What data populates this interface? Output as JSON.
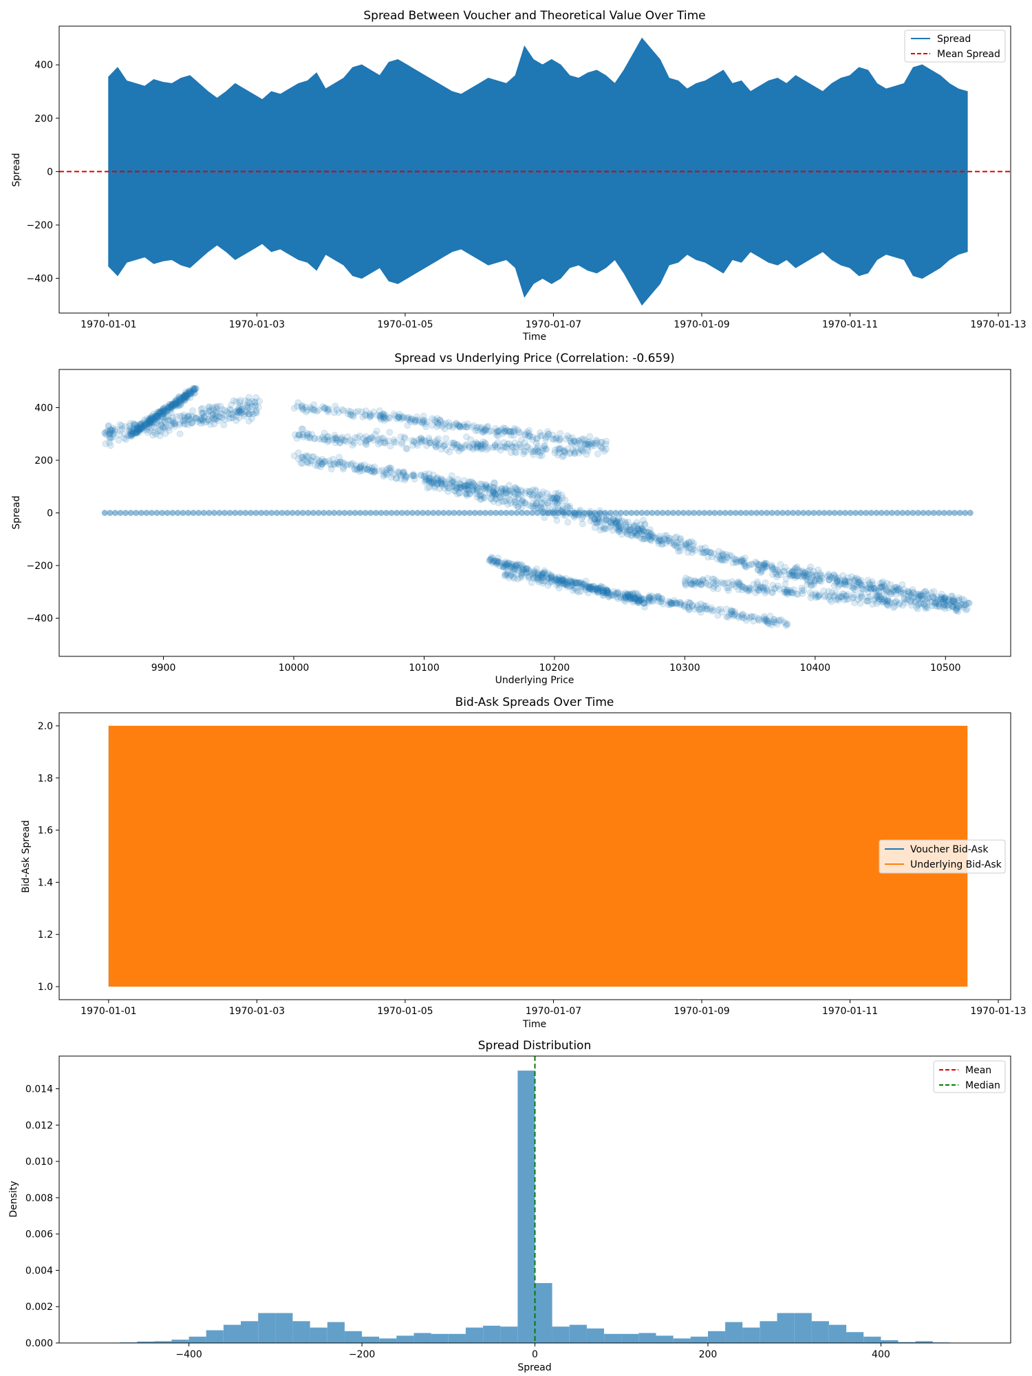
{
  "chart_data": [
    {
      "type": "line",
      "title": "Spread Between Voucher and Theoretical Value Over Time",
      "xlabel": "Time",
      "ylabel": "Spread",
      "xlim": [
        "1969-12-31 08:00",
        "1970-01-13 04:00"
      ],
      "ylim": [
        -530,
        545
      ],
      "xticks": [
        "1970-01-01",
        "1970-01-03",
        "1970-01-05",
        "1970-01-07",
        "1970-01-09",
        "1970-01-11",
        "1970-01-13"
      ],
      "yticks": [
        -400,
        -200,
        0,
        200,
        400
      ],
      "legend": [
        "Spread",
        "Mean Spread"
      ],
      "legend_position": "upper right",
      "mean_spread": 0,
      "series": [
        {
          "name": "Spread",
          "color": "#1f77b4",
          "x_start": "1970-01-01",
          "x_end": "1970-01-12 14:00",
          "envelope_abs": [
            355,
            390,
            340,
            330,
            320,
            345,
            335,
            330,
            350,
            360,
            330,
            300,
            275,
            300,
            330,
            310,
            290,
            270,
            300,
            290,
            310,
            330,
            340,
            370,
            310,
            330,
            350,
            390,
            400,
            380,
            360,
            410,
            420,
            400,
            380,
            360,
            340,
            320,
            300,
            290,
            310,
            330,
            350,
            340,
            330,
            360,
            470,
            420,
            400,
            420,
            400,
            360,
            350,
            370,
            380,
            360,
            330,
            380,
            440,
            500,
            460,
            420,
            350,
            340,
            310,
            330,
            340,
            360,
            380,
            330,
            340,
            300,
            320,
            340,
            350,
            330,
            360,
            340,
            320,
            300,
            330,
            350,
            360,
            390,
            380,
            330,
            310,
            320,
            330,
            390,
            400,
            380,
            360,
            330,
            310,
            300
          ]
        }
      ]
    },
    {
      "type": "scatter",
      "title": "Spread vs Underlying Price (Correlation: -0.659)",
      "xlabel": "Underlying Price",
      "ylabel": "Spread",
      "xlim": [
        9820,
        10550
      ],
      "ylim": [
        -545,
        545
      ],
      "xticks": [
        9900,
        10000,
        10100,
        10200,
        10300,
        10400,
        10500
      ],
      "yticks": [
        -400,
        -200,
        0,
        200,
        400
      ],
      "series": [
        {
          "name": "",
          "color": "#1f77b4",
          "alpha": 0.15,
          "clusters": [
            {
              "x": [
                9855,
                9975
              ],
              "y": [
                300,
                400
              ],
              "spread": 60
            },
            {
              "x": [
                9875,
                9925
              ],
              "y": [
                300,
                470
              ],
              "spread": 25
            },
            {
              "x": [
                10000,
                10240
              ],
              "y": [
                410,
                260
              ],
              "spread": 30
            },
            {
              "x": [
                10000,
                10240
              ],
              "y": [
                290,
                230
              ],
              "spread": 40
            },
            {
              "x": [
                10000,
                10210
              ],
              "y": [
                210,
                50
              ],
              "spread": 35
            },
            {
              "x": [
                10100,
                10270
              ],
              "y": [
                120,
                -60
              ],
              "spread": 50
            },
            {
              "x": [
                10150,
                10270
              ],
              "y": [
                -180,
                -340
              ],
              "spread": 25
            },
            {
              "x": [
                10160,
                10380
              ],
              "y": [
                -230,
                -420
              ],
              "spread": 30
            },
            {
              "x": [
                10230,
                10400
              ],
              "y": [
                -30,
                -260
              ],
              "spread": 40
            },
            {
              "x": [
                10300,
                10510
              ],
              "y": [
                -260,
                -360
              ],
              "spread": 35
            },
            {
              "x": [
                10380,
                10520
              ],
              "y": [
                -220,
                -350
              ],
              "spread": 40
            }
          ],
          "flat_line": {
            "x": [
              9855,
              10520
            ],
            "y": 0
          }
        }
      ]
    },
    {
      "type": "area",
      "title": "Bid-Ask Spreads Over Time",
      "xlabel": "Time",
      "ylabel": "Bid-Ask Spread",
      "xlim": [
        "1969-12-31 08:00",
        "1970-01-13 04:00"
      ],
      "ylim": [
        0.95,
        2.05
      ],
      "xticks": [
        "1970-01-01",
        "1970-01-03",
        "1970-01-05",
        "1970-01-07",
        "1970-01-09",
        "1970-01-11",
        "1970-01-13"
      ],
      "yticks": [
        1.0,
        1.2,
        1.4,
        1.6,
        1.8,
        2.0
      ],
      "legend": [
        "Voucher Bid-Ask",
        "Underlying Bid-Ask"
      ],
      "legend_position": "center right",
      "series": [
        {
          "name": "Voucher Bid-Ask",
          "color": "#1f77b4",
          "x": [
            "1970-01-01",
            "1970-01-12 14:00"
          ],
          "range": [
            1,
            2
          ]
        },
        {
          "name": "Underlying Bid-Ask",
          "color": "#ff7f0e",
          "x": [
            "1970-01-01",
            "1970-01-12 14:00"
          ],
          "range": [
            1,
            2
          ]
        }
      ]
    },
    {
      "type": "bar",
      "title": "Spread Distribution",
      "xlabel": "Spread",
      "ylabel": "Density",
      "xlim": [
        -550,
        550
      ],
      "ylim": [
        0,
        0.0158
      ],
      "xticks": [
        -400,
        -200,
        0,
        200,
        400
      ],
      "yticks": [
        0.0,
        0.002,
        0.004,
        0.006,
        0.008,
        0.01,
        0.012,
        0.014
      ],
      "legend": [
        "Mean",
        "Median"
      ],
      "legend_position": "upper right",
      "mean": 0,
      "median": 0,
      "series": [
        {
          "name": "",
          "color": "#1f77b4",
          "alpha": 0.7,
          "bin_start": -480,
          "bin_width": 20,
          "values": [
            3e-05,
            8e-05,
            0.0001,
            0.00018,
            0.00035,
            0.0007,
            0.001,
            0.0012,
            0.00165,
            0.00165,
            0.0012,
            0.00085,
            0.00115,
            0.00065,
            0.00035,
            0.00025,
            0.0004,
            0.00055,
            0.0005,
            0.0005,
            0.00085,
            0.00095,
            0.0009,
            0.015,
            0.0033,
            0.0009,
            0.001,
            0.0008,
            0.0005,
            0.0005,
            0.00055,
            0.0004,
            0.00025,
            0.00035,
            0.00065,
            0.00115,
            0.00085,
            0.0012,
            0.00165,
            0.00165,
            0.0012,
            0.001,
            0.0006,
            0.00035,
            0.00015,
            5e-05,
            0.0001,
            3e-05
          ]
        }
      ]
    }
  ]
}
